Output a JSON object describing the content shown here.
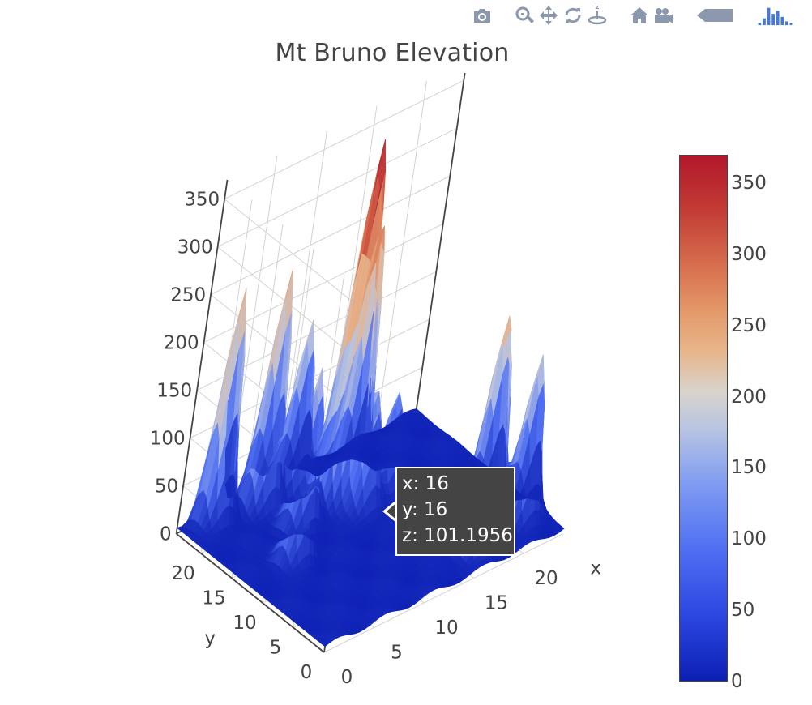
{
  "toolbar": {
    "buttons": [
      {
        "name": "camera-icon",
        "label": "Download plot as a png"
      },
      {
        "name": "zoom-icon",
        "label": "Zoom"
      },
      {
        "name": "pan-icon",
        "label": "Pan"
      },
      {
        "name": "orbit-rotation-icon",
        "label": "Orbital rotation"
      },
      {
        "name": "turntable-icon",
        "label": "Turntable rotation"
      },
      {
        "name": "home-icon",
        "label": "Reset camera to default"
      },
      {
        "name": "camera-last-save-icon",
        "label": "Reset camera to last save"
      },
      {
        "name": "toggle-hover-icon",
        "label": "Toggle show closest data on hover"
      },
      {
        "name": "plotly-logo-icon",
        "label": "Produced with Plotly"
      }
    ]
  },
  "chart_data": {
    "type": "surface",
    "title": "Mt Bruno Elevation",
    "colorscale": [
      "#0c1fb3",
      "#4f6ff2",
      "#b8c4e2",
      "#e8b48a",
      "#d66a4c",
      "#b2182b"
    ],
    "x_axis": {
      "label": "x",
      "ticks": [
        0,
        5,
        10,
        15,
        20
      ],
      "range": [
        0,
        24
      ]
    },
    "y_axis": {
      "label": "y",
      "ticks": [
        0,
        5,
        10,
        15,
        20
      ],
      "range": [
        0,
        24
      ]
    },
    "z_axis": {
      "label": "",
      "ticks": [
        0,
        50,
        100,
        150,
        200,
        250,
        300,
        350
      ],
      "range": [
        0,
        370
      ]
    },
    "colorbar": {
      "ticks": [
        0,
        50,
        100,
        150,
        200,
        250,
        300,
        350
      ],
      "range": [
        0,
        370
      ]
    },
    "grid": true,
    "peaks": [
      {
        "x": 12,
        "y": 18,
        "z": 370
      },
      {
        "x": 14,
        "y": 19,
        "z": 250
      },
      {
        "x": 3,
        "y": 23,
        "z": 240
      },
      {
        "x": 7,
        "y": 22,
        "z": 245
      },
      {
        "x": 17,
        "y": 3,
        "z": 205
      },
      {
        "x": 19,
        "y": 5,
        "z": 185
      },
      {
        "x": 20,
        "y": 7,
        "z": 195
      },
      {
        "x": 22,
        "y": 4,
        "z": 170
      },
      {
        "x": 8,
        "y": 17,
        "z": 160
      },
      {
        "x": 5,
        "y": 13,
        "z": 140
      },
      {
        "x": 13,
        "y": 15,
        "z": 120
      },
      {
        "x": 10,
        "y": 22,
        "z": 175
      },
      {
        "x": 16,
        "y": 16,
        "z": 101.1956
      }
    ],
    "hover": {
      "x": "x: 16",
      "y": "y: 16",
      "z": "z: 101.1956"
    }
  }
}
